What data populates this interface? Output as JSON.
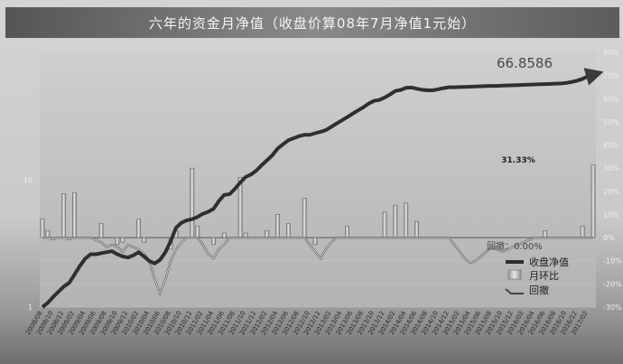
{
  "title": "六年的资金月净值（收盘价算08年7月净值1元始）",
  "chart_data": {
    "type": "line",
    "title": "六年的资金月净值（收盘价算08年7月净值1元始）",
    "months": 104,
    "left_axis": {
      "scale": "log",
      "range": [
        1,
        100
      ],
      "ticks": [
        "1",
        "10"
      ]
    },
    "right_axis": {
      "range": [
        -30,
        80
      ],
      "ticks": [
        "80%",
        "70%",
        "60%",
        "50%",
        "40%",
        "30%",
        "20%",
        "10%",
        "0%",
        "-10%",
        "-20%",
        "-30%"
      ]
    },
    "legend": {
      "position": "bottom-right",
      "entries": [
        "收盘净值",
        "月环比",
        "回撤"
      ]
    },
    "series": [
      {
        "name": "收盘净值",
        "axis": "left",
        "values": [
          1,
          1.08,
          1.2,
          1.32,
          1.45,
          1.55,
          1.8,
          2.1,
          2.4,
          2.6,
          2.6,
          2.65,
          2.7,
          2.75,
          2.6,
          2.5,
          2.45,
          2.55,
          2.7,
          2.5,
          2.3,
          2.2,
          2.35,
          2.7,
          3.3,
          4.2,
          4.6,
          4.8,
          4.9,
          5.1,
          5.4,
          5.6,
          5.9,
          6.8,
          7.6,
          7.7,
          8.5,
          9.5,
          10.5,
          11,
          11.8,
          13,
          14.2,
          15.6,
          17.6,
          19,
          20.4,
          21.2,
          22,
          22.5,
          22.5,
          23.2,
          23.8,
          24.5,
          26,
          27.6,
          29.3,
          31,
          33,
          35,
          37,
          39.6,
          41.6,
          42.3,
          44.2,
          46.7,
          49.8,
          50.7,
          52.6,
          53,
          51.9,
          50.9,
          50.4,
          50.4,
          51.4,
          52.4,
          53.2,
          53.2,
          53.4,
          53.6,
          53.8,
          54,
          54.2,
          54.4,
          54.6,
          54.6,
          54.8,
          55,
          55.2,
          55.4,
          55.6,
          55.8,
          56,
          56.2,
          56.4,
          56.6,
          56.8,
          57,
          57.6,
          58.6,
          60,
          62,
          65,
          66.8586
        ]
      },
      {
        "name": "月环比",
        "axis": "right",
        "values": [
          8,
          3,
          -1,
          0,
          19,
          -1,
          19.5,
          0,
          0,
          0,
          0,
          6,
          0,
          0,
          -3,
          -2,
          0,
          0,
          8,
          -2,
          0,
          0,
          0,
          0,
          -5,
          3,
          0,
          0,
          30,
          5,
          0,
          0,
          -3,
          0,
          2,
          0,
          0,
          26,
          2,
          0,
          0,
          0,
          3,
          0,
          10,
          0,
          6,
          0,
          0,
          17,
          0,
          -3,
          0,
          0,
          0,
          0,
          0,
          5,
          0,
          0,
          0,
          0,
          0,
          0,
          11,
          0,
          14,
          0,
          15,
          0,
          7,
          0,
          0,
          0,
          0,
          0,
          0,
          0,
          0,
          0,
          0,
          0,
          0,
          0,
          0,
          0,
          0,
          0,
          0,
          0,
          0,
          0,
          0,
          0,
          3,
          0,
          0,
          0,
          0,
          0,
          0,
          5,
          0,
          31.33
        ]
      },
      {
        "name": "回撤",
        "axis": "right",
        "values": [
          0,
          0,
          0,
          0,
          0,
          0,
          0,
          0,
          0,
          0,
          -1,
          -2,
          -4,
          -3,
          -4,
          -6,
          -3,
          -4,
          -5,
          -7,
          -10,
          -18,
          -24,
          -18,
          -10,
          -5,
          -2,
          0,
          0,
          0,
          -3,
          -7,
          -9,
          -5,
          -3,
          0,
          0,
          0,
          0,
          0,
          0,
          0,
          0,
          0,
          0,
          0,
          0,
          0,
          0,
          0,
          -3,
          -6,
          -9,
          -5,
          -2,
          0,
          0,
          0,
          0,
          0,
          0,
          0,
          0,
          0,
          0,
          0,
          0,
          0,
          0,
          0,
          0,
          0,
          0,
          0,
          0,
          0,
          0,
          -3,
          -6,
          -9,
          -11,
          -10,
          -8,
          -6,
          -4,
          -5,
          -6,
          -5,
          -4,
          -3,
          -2,
          -1,
          0,
          0,
          0,
          0,
          0,
          0,
          0,
          0,
          0,
          0,
          0,
          0
        ]
      }
    ],
    "annotations": {
      "final_value": "66.8586",
      "last_month": "31.33%",
      "drawdown_now": "回撤：0.00%"
    }
  }
}
